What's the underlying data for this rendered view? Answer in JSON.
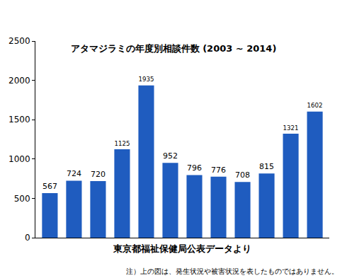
{
  "chart_data": {
    "type": "bar",
    "title": "アタマジラミの年度別相談件数 (2003 ~ 2014)",
    "x_label": "東京都福祉保健局公表データより",
    "annotations": [
      "注）上の図は、発生状況や被害状況を表したものではありません。"
    ],
    "categories": [
      null,
      null,
      null,
      null,
      null,
      null,
      null,
      null,
      null,
      null,
      null,
      null
    ],
    "values": [
      567,
      724,
      720,
      1125,
      1935,
      952,
      796,
      776,
      708,
      815,
      1321,
      1602
    ],
    "color": "#1f5cbf",
    "ylim": [
      0,
      2500
    ],
    "yticks": [
      0,
      500,
      1000,
      1500,
      2000,
      2500
    ],
    "grid": false,
    "data_labels": true,
    "tick_labels": "y"
  }
}
